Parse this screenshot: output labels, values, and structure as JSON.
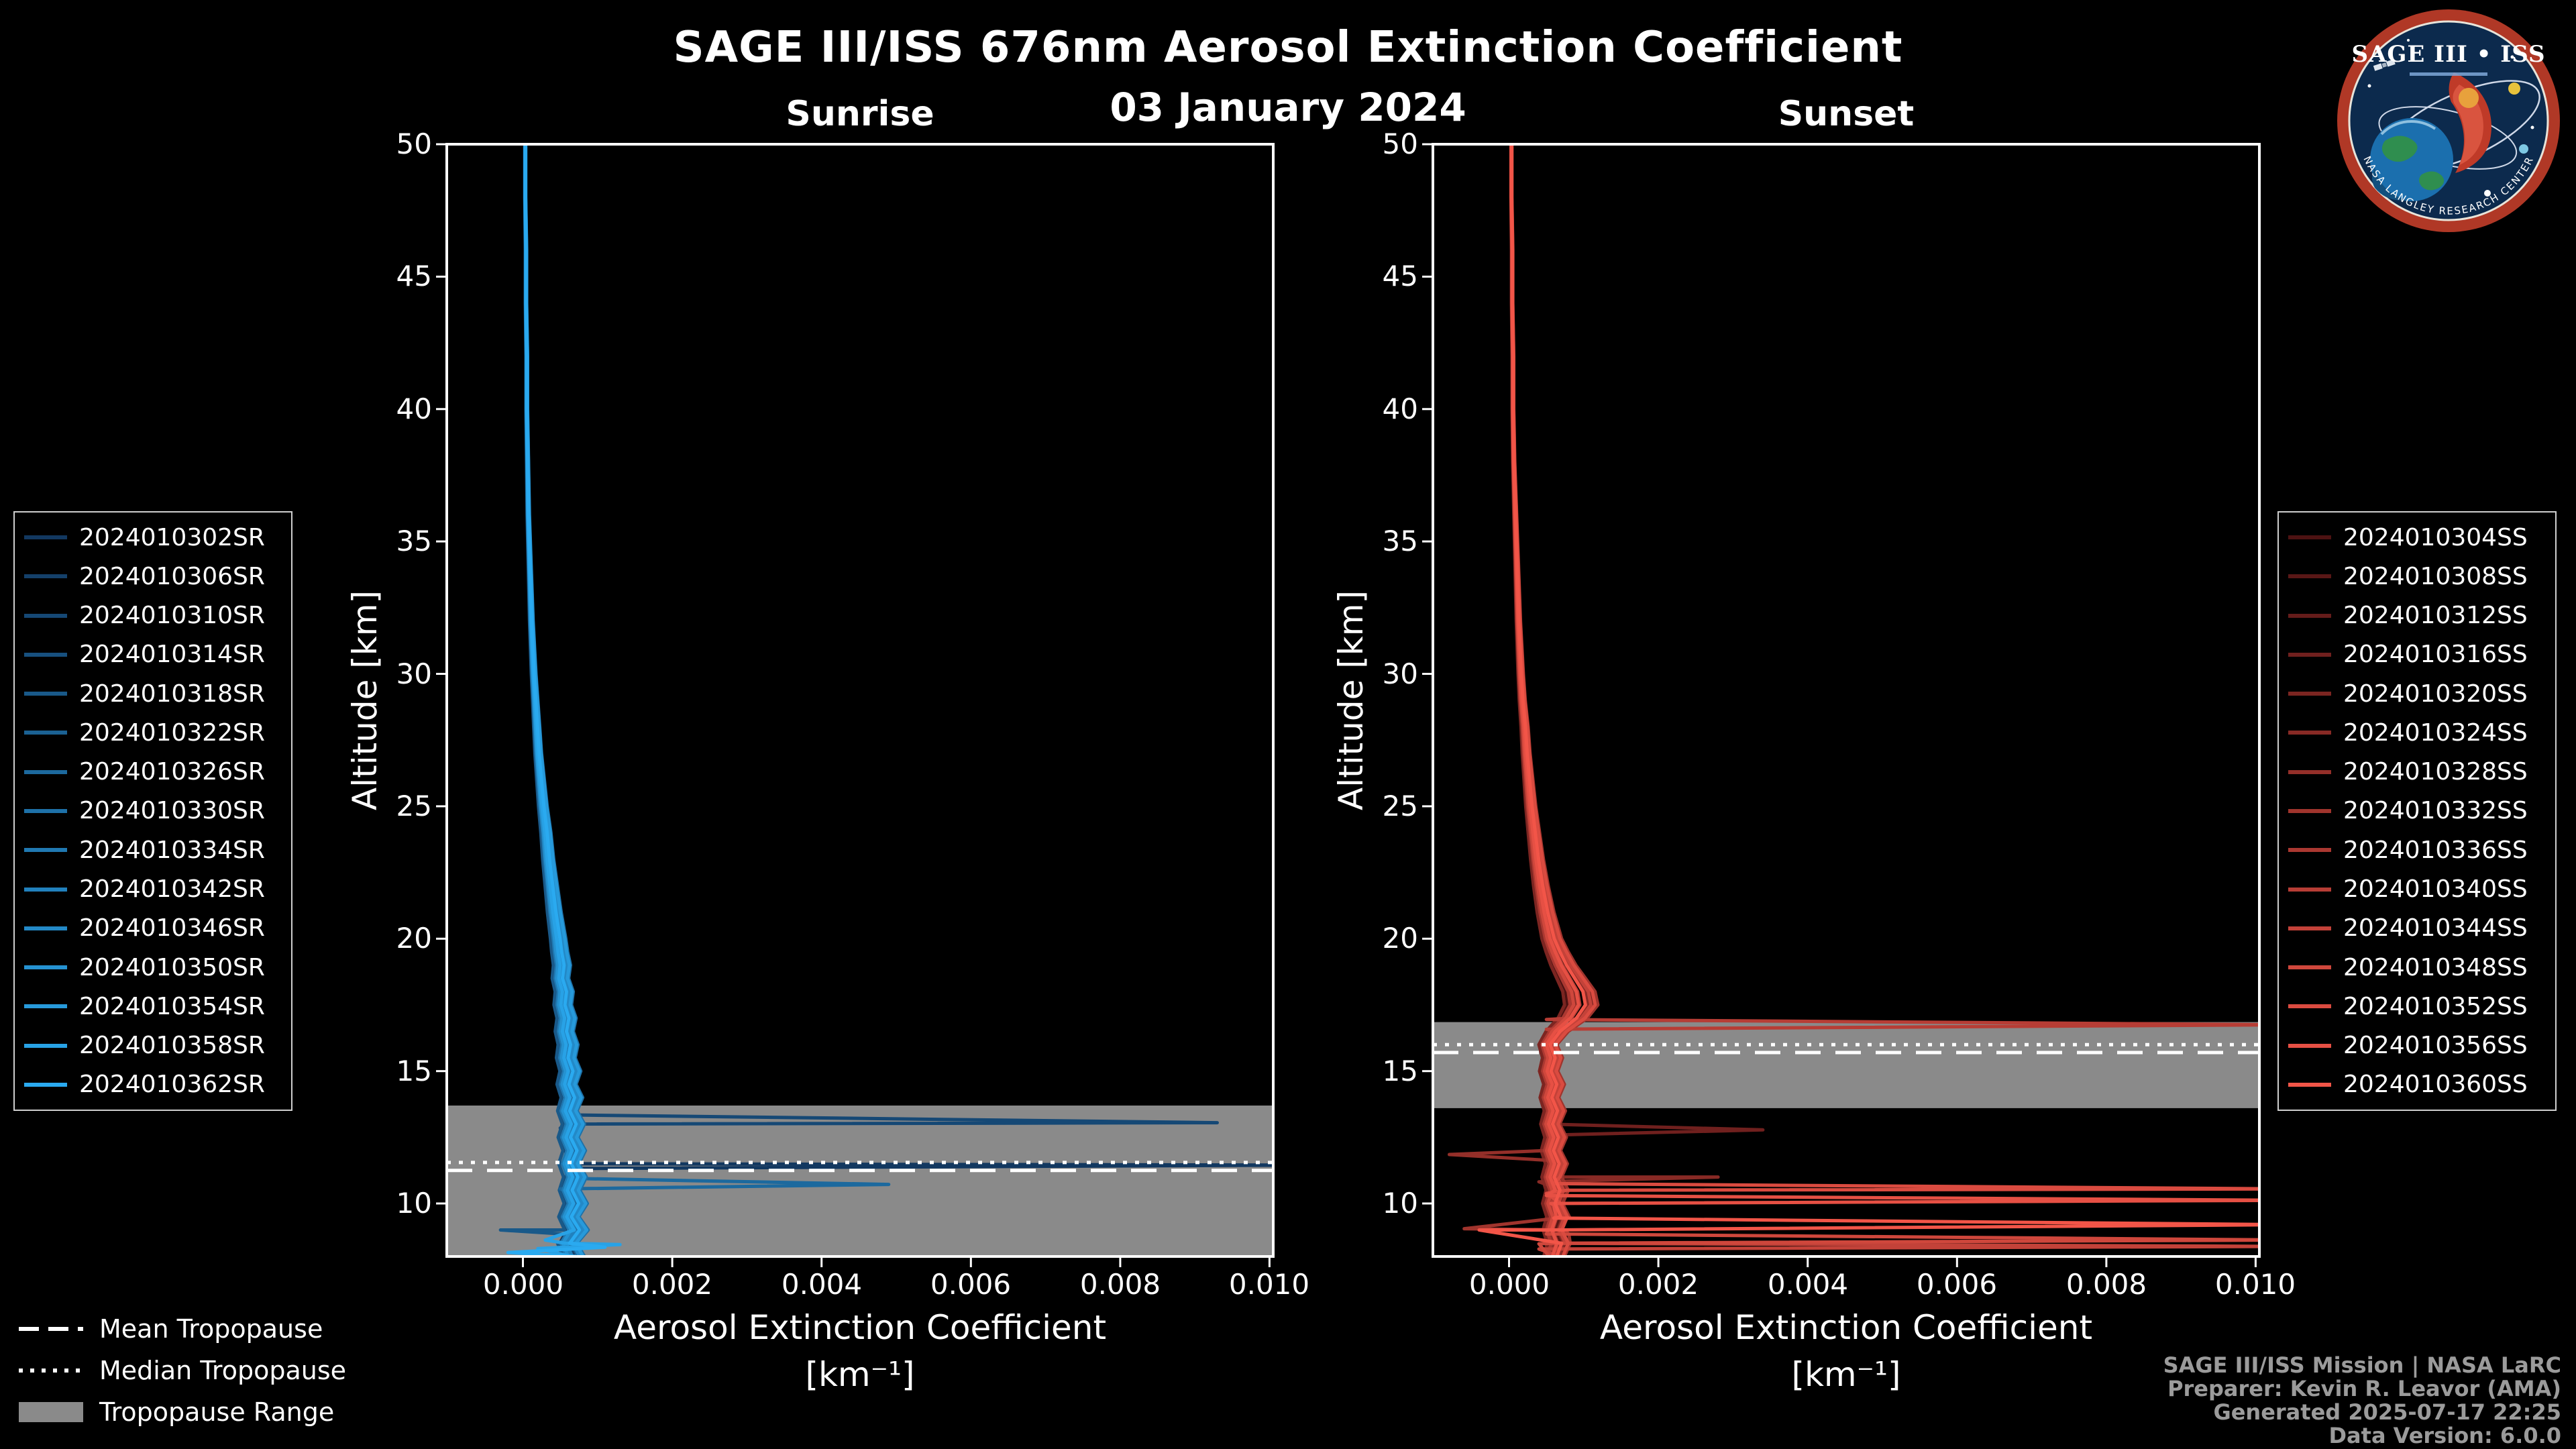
{
  "header": {
    "title": "SAGE III/ISS 676nm Aerosol Extinction Coefficient",
    "date": "03 January 2024"
  },
  "logo": {
    "title": "SAGE III • ISS",
    "ring_text": "• NASA LANGLEY RESEARCH CENTER •"
  },
  "tropopause_legend": {
    "mean": "Mean Tropopause",
    "median": "Median Tropopause",
    "range": "Tropopause Range"
  },
  "credits": {
    "lines": [
      "SAGE III/ISS Mission | NASA LaRC",
      "Preparer: Kevin R. Leavor (AMA)",
      "Generated 2025-07-17 22:25",
      "Data Version: 6.0.0"
    ]
  },
  "colors": {
    "background": "#000000",
    "axis": "#ffffff",
    "tropopause_band": "#8a8a8a",
    "sunrise_accent": "#2AAAF0",
    "sunset_accent": "#F25548"
  },
  "chart_data": [
    {
      "type": "line",
      "title": "Sunrise",
      "xlabel": "Aerosol Extinction Coefficient",
      "xlabel_units": "[km⁻¹]",
      "ylabel": "Altitude [km]",
      "xlim": [
        -0.00102,
        0.01005
      ],
      "ylim": [
        8,
        50
      ],
      "xticks": [
        0,
        0.002,
        0.004,
        0.006,
        0.008,
        0.01
      ],
      "xtick_labels": [
        "0.000",
        "0.002",
        "0.004",
        "0.006",
        "0.008",
        "0.010"
      ],
      "yticks": [
        10,
        15,
        20,
        25,
        30,
        35,
        40,
        45,
        50
      ],
      "grid": false,
      "legend_side": "left",
      "tropopause": {
        "mean_km": 11.25,
        "median_km": 11.55,
        "range_km": [
          8,
          13.7
        ]
      },
      "altitudes_km": [
        50,
        48,
        46,
        44,
        42,
        40,
        38,
        36,
        34,
        32,
        30,
        29,
        28,
        27,
        26,
        25,
        24,
        23,
        22,
        21,
        20,
        19.5,
        19,
        18.5,
        18,
        17.5,
        17,
        16.5,
        16,
        15.5,
        15,
        14.5,
        14,
        13.5,
        13,
        12.5,
        12,
        11.5,
        11,
        10.5,
        10,
        9.5,
        9,
        8.5,
        8
      ],
      "base_profile": [
        3e-05,
        3e-05,
        4e-05,
        4e-05,
        5e-05,
        5e-05,
        6e-05,
        7e-05,
        9e-05,
        0.00011,
        0.00014,
        0.00016,
        0.00018,
        0.0002,
        0.00023,
        0.00026,
        0.0003,
        0.00033,
        0.00037,
        0.00041,
        0.00046,
        0.00048,
        0.00051,
        0.00049,
        0.00054,
        0.00052,
        0.00057,
        0.00054,
        0.00059,
        0.00056,
        0.00062,
        0.00057,
        0.00064,
        0.00058,
        0.00066,
        0.00059,
        0.00067,
        0.0006,
        0.00068,
        0.00061,
        0.00069,
        0.0006,
        0.0007,
        0.00058,
        0.00066
      ],
      "series": [
        {
          "name": "2024010302SR",
          "color": "#123860",
          "scale": 0.85,
          "overrides": [
            [
              11.65,
              0.0006
            ],
            [
              11.45,
              0.0104
            ],
            [
              11.32,
              0.0006
            ]
          ]
        },
        {
          "name": "2024010306SR",
          "color": "#14406A",
          "scale": 1.05
        },
        {
          "name": "2024010310SR",
          "color": "#154875",
          "scale": 0.9,
          "overrides": [
            [
              13.35,
              0.0005
            ],
            [
              13.05,
              0.0093
            ],
            [
              12.85,
              0.0005
            ]
          ]
        },
        {
          "name": "2024010314SR",
          "color": "#17507F",
          "scale": 1.18
        },
        {
          "name": "2024010318SR",
          "color": "#195989",
          "scale": 0.8,
          "overrides": [
            [
              9.0,
              -0.0003
            ],
            [
              8.8,
              0.0008
            ]
          ]
        },
        {
          "name": "2024010322SR",
          "color": "#1B6193",
          "scale": 1.12
        },
        {
          "name": "2024010326SR",
          "color": "#1C699E",
          "scale": 0.95,
          "overrides": [
            [
              10.95,
              0.0006
            ],
            [
              10.72,
              0.0049
            ],
            [
              10.55,
              0.0005
            ]
          ]
        },
        {
          "name": "2024010330SR",
          "color": "#1E71A8",
          "scale": 1.25
        },
        {
          "name": "2024010334SR",
          "color": "#2079B2",
          "scale": 0.88
        },
        {
          "name": "2024010342SR",
          "color": "#2181BD",
          "scale": 1.0
        },
        {
          "name": "2024010346SR",
          "color": "#2389C7",
          "scale": 1.15
        },
        {
          "name": "2024010350SR",
          "color": "#2592D1",
          "scale": 0.92
        },
        {
          "name": "2024010354SR",
          "color": "#279ADB",
          "scale": 1.22
        },
        {
          "name": "2024010358SR",
          "color": "#28A2E6",
          "scale": 0.98,
          "overrides": [
            [
              8.62,
              0.0003
            ],
            [
              8.45,
              0.0013
            ],
            [
              8.3,
              0.0002
            ]
          ]
        },
        {
          "name": "2024010362SR",
          "color": "#2AAAF0",
          "scale": 1.08,
          "overrides": [
            [
              8.35,
              0.0011
            ],
            [
              8.15,
              -0.0002
            ]
          ]
        }
      ]
    },
    {
      "type": "line",
      "title": "Sunset",
      "xlabel": "Aerosol Extinction Coefficient",
      "xlabel_units": "[km⁻¹]",
      "ylabel": "Altitude [km]",
      "xlim": [
        -0.00102,
        0.01005
      ],
      "ylim": [
        8,
        50
      ],
      "xticks": [
        0,
        0.002,
        0.004,
        0.006,
        0.008,
        0.01
      ],
      "xtick_labels": [
        "0.000",
        "0.002",
        "0.004",
        "0.006",
        "0.008",
        "0.010"
      ],
      "yticks": [
        10,
        15,
        20,
        25,
        30,
        35,
        40,
        45,
        50
      ],
      "grid": false,
      "legend_side": "right",
      "tropopause": {
        "mean_km": 15.7,
        "median_km": 16.0,
        "range_km": [
          13.6,
          16.85
        ]
      },
      "altitudes_km": [
        50,
        48,
        46,
        44,
        42,
        40,
        38,
        36,
        34,
        32,
        30,
        29,
        28,
        27,
        26,
        25,
        24,
        23,
        22,
        21,
        20,
        19.5,
        19,
        18.5,
        18,
        17.5,
        17,
        16.5,
        16,
        15.5,
        15,
        14.5,
        14,
        13.5,
        13,
        12.5,
        12,
        11.5,
        11,
        10.5,
        10,
        9.5,
        9,
        8.5,
        8
      ],
      "base_profile": [
        3e-05,
        3e-05,
        4e-05,
        4e-05,
        5e-05,
        5e-05,
        6e-05,
        8e-05,
        0.0001,
        0.00012,
        0.00015,
        0.00017,
        0.0002,
        0.00022,
        0.00025,
        0.00028,
        0.00032,
        0.00036,
        0.00041,
        0.00047,
        0.00055,
        0.00062,
        0.0007,
        0.0008,
        0.0009,
        0.00093,
        0.00082,
        0.00062,
        0.0005,
        0.00056,
        0.00051,
        0.00058,
        0.00052,
        0.00059,
        0.00053,
        0.0006,
        0.00054,
        0.00061,
        0.00055,
        0.00062,
        0.00056,
        0.00063,
        0.00057,
        0.00064,
        0.00058
      ],
      "series": [
        {
          "name": "2024010304SS",
          "color": "#4D1212",
          "scale": 0.85
        },
        {
          "name": "2024010308SS",
          "color": "#591716",
          "scale": 1.1
        },
        {
          "name": "2024010312SS",
          "color": "#651C1A",
          "scale": 0.9
        },
        {
          "name": "2024010316SS",
          "color": "#70201E",
          "scale": 1.2,
          "overrides": [
            [
              13.0,
              0.0005
            ],
            [
              12.78,
              0.0034
            ],
            [
              12.58,
              0.0005
            ]
          ]
        },
        {
          "name": "2024010320SS",
          "color": "#7C2521",
          "scale": 0.8
        },
        {
          "name": "2024010324SS",
          "color": "#882A25",
          "scale": 1.15,
          "overrides": [
            [
              11.25,
              0.0005
            ],
            [
              11.0,
              0.0028
            ],
            [
              10.82,
              0.0004
            ]
          ]
        },
        {
          "name": "2024010328SS",
          "color": "#942F29",
          "scale": 0.95,
          "overrides": [
            [
              12.1,
              0.0005
            ],
            [
              11.85,
              -0.0008
            ],
            [
              11.62,
              0.0006
            ]
          ]
        },
        {
          "name": "2024010332SS",
          "color": "#A0342D",
          "scale": 1.28,
          "overrides": [
            [
              9.05,
              -0.0006
            ],
            [
              8.85,
              0.0008
            ]
          ]
        },
        {
          "name": "2024010336SS",
          "color": "#AB3831",
          "scale": 0.88
        },
        {
          "name": "2024010340SS",
          "color": "#B73D35",
          "scale": 1.02,
          "overrides": [
            [
              16.95,
              0.0005
            ],
            [
              16.75,
              0.0104
            ],
            [
              16.58,
              0.0005
            ]
          ]
        },
        {
          "name": "2024010344SS",
          "color": "#C34239",
          "scale": 1.18,
          "overrides": [
            [
              8.5,
              0.0005
            ],
            [
              8.38,
              0.0104
            ],
            [
              8.28,
              0.0004
            ]
          ]
        },
        {
          "name": "2024010348SS",
          "color": "#CF473C",
          "scale": 0.93,
          "overrides": [
            [
              8.85,
              0.0005
            ],
            [
              8.62,
              0.0104
            ],
            [
              8.48,
              0.0004
            ]
          ]
        },
        {
          "name": "2024010352SS",
          "color": "#DA4B40",
          "scale": 1.24,
          "overrides": [
            [
              10.75,
              0.0006
            ],
            [
              10.55,
              0.0104
            ],
            [
              10.38,
              0.0005
            ]
          ]
        },
        {
          "name": "2024010356SS",
          "color": "#E65044",
          "scale": 1.0,
          "overrides": [
            [
              10.3,
              0.0005
            ],
            [
              10.12,
              0.0104
            ],
            [
              9.95,
              0.0006
            ]
          ]
        },
        {
          "name": "2024010360SS",
          "color": "#F25548",
          "scale": 1.1,
          "overrides": [
            [
              9.45,
              0.0006
            ],
            [
              9.2,
              0.0104
            ],
            [
              9.0,
              -0.0004
            ]
          ]
        }
      ]
    }
  ]
}
